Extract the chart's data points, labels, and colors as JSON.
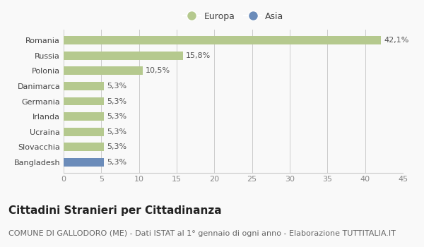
{
  "categories": [
    "Bangladesh",
    "Slovacchia",
    "Ucraina",
    "Irlanda",
    "Germania",
    "Danimarca",
    "Polonia",
    "Russia",
    "Romania"
  ],
  "values": [
    5.3,
    5.3,
    5.3,
    5.3,
    5.3,
    5.3,
    10.5,
    15.8,
    42.1
  ],
  "labels": [
    "5,3%",
    "5,3%",
    "5,3%",
    "5,3%",
    "5,3%",
    "5,3%",
    "10,5%",
    "15,8%",
    "42,1%"
  ],
  "colors": [
    "#6b8cba",
    "#b5c98e",
    "#b5c98e",
    "#b5c98e",
    "#b5c98e",
    "#b5c98e",
    "#b5c98e",
    "#b5c98e",
    "#b5c98e"
  ],
  "legend_labels": [
    "Europa",
    "Asia"
  ],
  "legend_colors": [
    "#b5c98e",
    "#6b8cba"
  ],
  "xlim": [
    0,
    45
  ],
  "xticks": [
    0,
    5,
    10,
    15,
    20,
    25,
    30,
    35,
    40,
    45
  ],
  "title": "Cittadini Stranieri per Cittadinanza",
  "subtitle": "COMUNE DI GALLODORO (ME) - Dati ISTAT al 1° gennaio di ogni anno - Elaborazione TUTTITALIA.IT",
  "title_fontsize": 11,
  "subtitle_fontsize": 8,
  "label_fontsize": 8,
  "tick_fontsize": 8,
  "background_color": "#f9f9f9",
  "grid_color": "#cccccc"
}
